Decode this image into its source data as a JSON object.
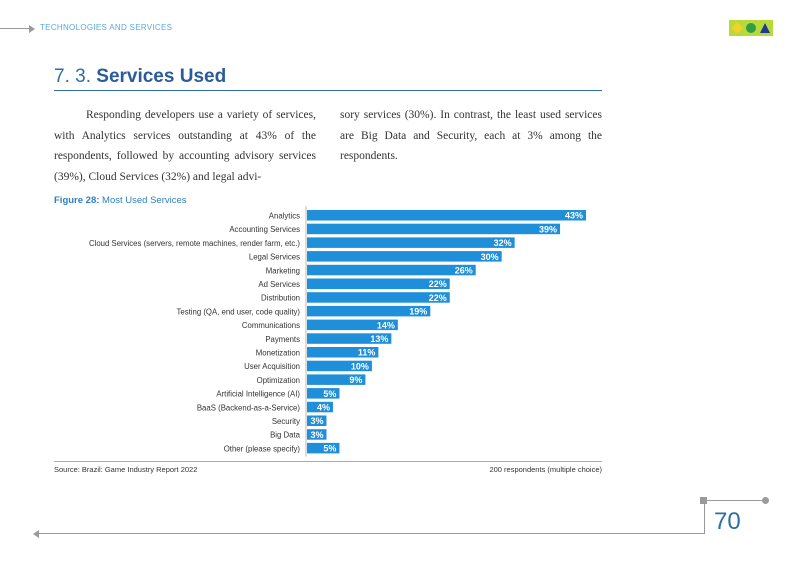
{
  "header": {
    "section_label": "TECHNOLOGIES AND SERVICES",
    "logo_icon": "game-shapes-logo"
  },
  "section": {
    "number": "7. 3.",
    "title": "Services Used"
  },
  "body": {
    "col1": "Responding developers use a variety of services, with Analytics services outstanding at 43% of the respondents, followed by accounting advisory services (39%), Cloud Services (32%) and legal advi-",
    "col2": "sory services (30%). In contrast, the least used services are Big Data and Security, each at 3% among the respondents."
  },
  "figure": {
    "label": "Figure 28:",
    "title": "Most Used Services"
  },
  "chart_data": {
    "type": "bar",
    "orientation": "horizontal",
    "categories": [
      "Analytics",
      "Accounting Services",
      "Cloud Services (servers, remote machines, render farm, etc.)",
      "Legal Services",
      "Marketing",
      "Ad Services",
      "Distribution",
      "Testing (QA, end user, code quality)",
      "Communications",
      "Payments",
      "Monetization",
      "User Acquisition",
      "Optimization",
      "Artificial Intelligence (AI)",
      "BaaS (Backend-as-a-Service)",
      "Security",
      "Big Data",
      "Other (please specify)"
    ],
    "values": [
      43,
      39,
      32,
      30,
      26,
      22,
      22,
      19,
      14,
      13,
      11,
      10,
      9,
      5,
      4,
      3,
      3,
      5
    ],
    "value_labels": [
      "43%",
      "39%",
      "32%",
      "30%",
      "26%",
      "22%",
      "22%",
      "19%",
      "14%",
      "13%",
      "11%",
      "10%",
      "9%",
      "5%",
      "4%",
      "3%",
      "3%",
      "5%"
    ],
    "xlim": [
      0,
      45
    ],
    "bar_color": "#1e8fd8",
    "grid": false,
    "legend": "none"
  },
  "source": {
    "left": "Source: Brazil: Game Industry Report 2022",
    "right": "200 respondents (multiple choice)"
  },
  "footer": {
    "page_number": "70"
  }
}
